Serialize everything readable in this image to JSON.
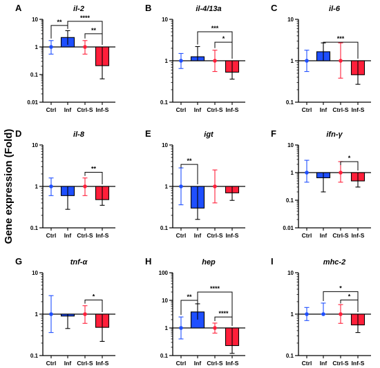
{
  "figure": {
    "ylabel": "Gene expression (Fold)",
    "colors": {
      "control": "#1f4fff",
      "infected": "#ff1f3a",
      "axis": "#000000"
    }
  },
  "chart_data": [
    {
      "type": "bar",
      "panel": "A",
      "title": "il-2",
      "log_scale": true,
      "ylim": [
        0.01,
        10
      ],
      "yticks": [
        "0.01",
        "0.1",
        "1",
        "10"
      ],
      "categories": [
        "Ctrl",
        "Inf",
        "Ctrl-S",
        "Inf-S"
      ],
      "values": [
        1.0,
        2.2,
        1.0,
        0.21
      ],
      "err_low": [
        0.55,
        1.2,
        0.55,
        0.07
      ],
      "err_high": [
        1.7,
        3.9,
        1.7,
        1.0
      ],
      "sig": [
        {
          "from": 0,
          "to": 1,
          "label": "**",
          "y": 6
        },
        {
          "from": 1,
          "to": 3,
          "label": "****",
          "y": 8.5
        },
        {
          "from": 2,
          "to": 3,
          "label": "**",
          "y": 3
        }
      ]
    },
    {
      "type": "bar",
      "panel": "B",
      "title": "il-4/13a",
      "log_scale": true,
      "ylim": [
        0.1,
        10
      ],
      "yticks": [
        "0.1",
        "1",
        "10"
      ],
      "categories": [
        "Ctrl",
        "Inf",
        "Ctrl-S",
        "Inf-S"
      ],
      "values": [
        1.0,
        1.25,
        1.0,
        0.53
      ],
      "err_low": [
        0.65,
        1.0,
        0.55,
        0.36
      ],
      "err_high": [
        1.5,
        2.2,
        1.8,
        1.0
      ],
      "sig": [
        {
          "from": 1,
          "to": 3,
          "label": "***",
          "y": 5
        },
        {
          "from": 2,
          "to": 3,
          "label": "*",
          "y": 2.8
        }
      ]
    },
    {
      "type": "bar",
      "panel": "C",
      "title": "il-6",
      "log_scale": true,
      "ylim": [
        0.1,
        10
      ],
      "yticks": [
        "0.1",
        "1",
        "10"
      ],
      "categories": [
        "Ctrl",
        "Inf",
        "Ctrl-S",
        "Inf-S"
      ],
      "values": [
        1.0,
        1.65,
        1.0,
        0.46
      ],
      "err_low": [
        0.55,
        1.0,
        0.38,
        0.27
      ],
      "err_high": [
        1.8,
        2.7,
        2.7,
        1.0
      ],
      "sig": [
        {
          "from": 1,
          "to": 3,
          "label": "***",
          "y": 2.8
        }
      ]
    },
    {
      "type": "bar",
      "panel": "D",
      "title": "il-8",
      "log_scale": true,
      "ylim": [
        0.1,
        10
      ],
      "yticks": [
        "0.1",
        "1",
        "10"
      ],
      "categories": [
        "Ctrl",
        "Inf",
        "Ctrl-S",
        "Inf-S"
      ],
      "values": [
        1.0,
        0.6,
        1.0,
        0.48
      ],
      "err_low": [
        0.6,
        0.28,
        0.6,
        0.35
      ],
      "err_high": [
        1.6,
        1.0,
        1.6,
        1.0
      ],
      "sig": [
        {
          "from": 2,
          "to": 3,
          "label": "**",
          "y": 2.2
        }
      ]
    },
    {
      "type": "bar",
      "panel": "E",
      "title": "igt",
      "log_scale": true,
      "ylim": [
        0.1,
        10
      ],
      "yticks": [
        "0.1",
        "1",
        "10"
      ],
      "categories": [
        "Ctrl",
        "Inf",
        "Ctrl-S",
        "Inf-S"
      ],
      "values": [
        1.0,
        0.3,
        1.0,
        0.7
      ],
      "err_low": [
        0.36,
        0.16,
        0.4,
        0.46
      ],
      "err_high": [
        2.8,
        1.0,
        2.5,
        1.0
      ],
      "sig": [
        {
          "from": 0,
          "to": 1,
          "label": "**",
          "y": 3.4
        }
      ]
    },
    {
      "type": "bar",
      "panel": "F",
      "title": "ifn-γ",
      "log_scale": true,
      "ylim": [
        0.01,
        10
      ],
      "yticks": [
        "0.01",
        "0.1",
        "1",
        "10"
      ],
      "categories": [
        "Ctrl",
        "Inf",
        "Ctrl-S",
        "Inf-S"
      ],
      "values": [
        1.0,
        0.65,
        1.0,
        0.5
      ],
      "err_low": [
        0.45,
        0.2,
        0.45,
        0.3
      ],
      "err_high": [
        2.8,
        1.0,
        2.5,
        1.0
      ],
      "sig": [
        {
          "from": 2,
          "to": 3,
          "label": "*",
          "y": 2.5
        }
      ]
    },
    {
      "type": "bar",
      "panel": "G",
      "title": "tnf-α",
      "log_scale": true,
      "ylim": [
        0.1,
        10
      ],
      "yticks": [
        "0.1",
        "1",
        "10"
      ],
      "categories": [
        "Ctrl",
        "Inf",
        "Ctrl-S",
        "Inf-S"
      ],
      "values": [
        1.0,
        0.9,
        1.0,
        0.48
      ],
      "err_low": [
        0.36,
        0.45,
        0.6,
        0.22
      ],
      "err_high": [
        2.8,
        1.0,
        1.6,
        1.0
      ],
      "sig": [
        {
          "from": 2,
          "to": 3,
          "label": "*",
          "y": 2.2
        }
      ]
    },
    {
      "type": "bar",
      "panel": "H",
      "title": "hep",
      "log_scale": true,
      "ylim": [
        0.1,
        100
      ],
      "yticks": [
        "0.1",
        "1",
        "10",
        "100"
      ],
      "categories": [
        "Ctrl",
        "Inf",
        "Ctrl-S",
        "Inf-S"
      ],
      "values": [
        1.0,
        3.8,
        1.0,
        0.23
      ],
      "err_low": [
        0.4,
        2.0,
        0.65,
        0.12
      ],
      "err_high": [
        2.5,
        7.5,
        1.5,
        1.0
      ],
      "sig": [
        {
          "from": 0,
          "to": 1,
          "label": "**",
          "y": 10
        },
        {
          "from": 1,
          "to": 3,
          "label": "****",
          "y": 20
        },
        {
          "from": 2,
          "to": 3,
          "label": "****",
          "y": 2.5
        }
      ]
    },
    {
      "type": "bar",
      "panel": "I",
      "title": "mhc-2",
      "log_scale": true,
      "ylim": [
        0.1,
        10
      ],
      "yticks": [
        "0.1",
        "1",
        "10"
      ],
      "categories": [
        "Ctrl",
        "Inf",
        "Ctrl-S",
        "Inf-S"
      ],
      "values": [
        1.0,
        1.0,
        1.0,
        0.55
      ],
      "err_low": [
        0.7,
        1.0,
        0.6,
        0.36
      ],
      "err_high": [
        1.45,
        1.85,
        1.7,
        1.0
      ],
      "sig": [
        {
          "from": 1,
          "to": 3,
          "label": "*",
          "y": 3.5
        },
        {
          "from": 2,
          "to": 3,
          "label": "*",
          "y": 2.2
        }
      ]
    }
  ]
}
